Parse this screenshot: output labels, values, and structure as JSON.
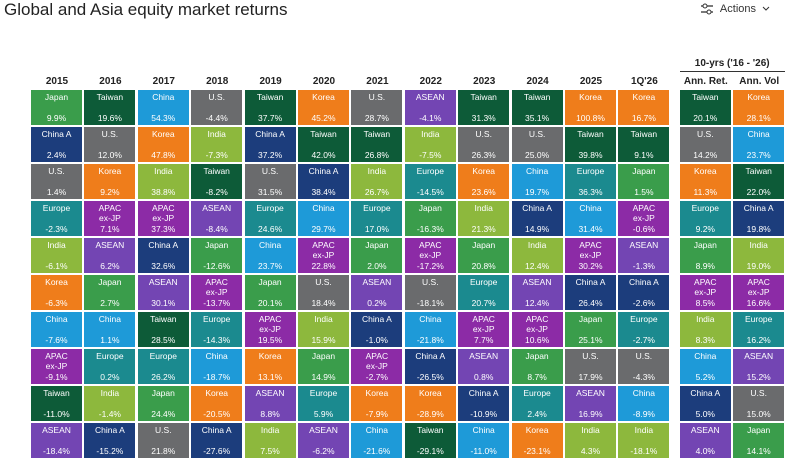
{
  "header": {
    "title": "Global and Asia equity market returns",
    "action": "Actions"
  },
  "table": {
    "group_header": "10-yrs ('16 - '26)",
    "colors": {
      "Japan": "#3a9d4b",
      "Taiwan": "#0d5b38",
      "China": "#1e9ad8",
      "U.S.": "#6a6b6d",
      "Korea": "#ef7d1b",
      "China A": "#1c3d7c",
      "India": "#8db83d",
      "ASEAN": "#7345b3",
      "Europe": "#1b8a8f",
      "APAC ex-JP": "#8c2ba6"
    },
    "columns": [
      {
        "header": "2015",
        "cells": [
          [
            "Japan",
            "9.9%"
          ],
          [
            "China A",
            "2.4%"
          ],
          [
            "U.S.",
            "1.4%"
          ],
          [
            "Europe",
            "-2.3%"
          ],
          [
            "India",
            "-6.1%"
          ],
          [
            "Korea",
            "-6.3%"
          ],
          [
            "China",
            "-7.6%"
          ],
          [
            "APAC ex-JP",
            "-9.1%"
          ],
          [
            "Taiwan",
            "-11.0%"
          ],
          [
            "ASEAN",
            "-18.4%"
          ]
        ]
      },
      {
        "header": "2016",
        "cells": [
          [
            "Taiwan",
            "19.6%"
          ],
          [
            "U.S.",
            "12.0%"
          ],
          [
            "Korea",
            "9.2%"
          ],
          [
            "APAC ex-JP",
            "7.1%"
          ],
          [
            "ASEAN",
            "6.2%"
          ],
          [
            "Japan",
            "2.7%"
          ],
          [
            "China",
            "1.1%"
          ],
          [
            "Europe",
            "0.2%"
          ],
          [
            "India",
            "-1.4%"
          ],
          [
            "China A",
            "-15.2%"
          ]
        ]
      },
      {
        "header": "2017",
        "cells": [
          [
            "China",
            "54.3%"
          ],
          [
            "Korea",
            "47.8%"
          ],
          [
            "India",
            "38.8%"
          ],
          [
            "APAC ex-JP",
            "37.3%"
          ],
          [
            "China A",
            "32.6%"
          ],
          [
            "ASEAN",
            "30.1%"
          ],
          [
            "Taiwan",
            "28.5%"
          ],
          [
            "Europe",
            "26.2%"
          ],
          [
            "Japan",
            "24.4%"
          ],
          [
            "U.S.",
            "21.8%"
          ]
        ]
      },
      {
        "header": "2018",
        "cells": [
          [
            "U.S.",
            "-4.4%"
          ],
          [
            "India",
            "-7.3%"
          ],
          [
            "Taiwan",
            "-8.2%"
          ],
          [
            "ASEAN",
            "-8.4%"
          ],
          [
            "Japan",
            "-12.6%"
          ],
          [
            "APAC ex-JP",
            "-13.7%"
          ],
          [
            "Europe",
            "-14.3%"
          ],
          [
            "China",
            "-18.7%"
          ],
          [
            "Korea",
            "-20.5%"
          ],
          [
            "China A",
            "-27.6%"
          ]
        ]
      },
      {
        "header": "2019",
        "cells": [
          [
            "Taiwan",
            "37.7%"
          ],
          [
            "China A",
            "37.2%"
          ],
          [
            "U.S.",
            "31.5%"
          ],
          [
            "Europe",
            "24.6%"
          ],
          [
            "China",
            "23.7%"
          ],
          [
            "Japan",
            "20.1%"
          ],
          [
            "APAC ex-JP",
            "19.5%"
          ],
          [
            "Korea",
            "13.1%"
          ],
          [
            "ASEAN",
            "8.8%"
          ],
          [
            "India",
            "7.5%"
          ]
        ]
      },
      {
        "header": "2020",
        "cells": [
          [
            "Korea",
            "45.2%"
          ],
          [
            "Taiwan",
            "42.0%"
          ],
          [
            "China A",
            "38.4%"
          ],
          [
            "China",
            "29.7%"
          ],
          [
            "APAC ex-JP",
            "22.8%"
          ],
          [
            "U.S.",
            "18.4%"
          ],
          [
            "India",
            "15.9%"
          ],
          [
            "Japan",
            "14.9%"
          ],
          [
            "Europe",
            "5.9%"
          ],
          [
            "ASEAN",
            "-6.2%"
          ]
        ]
      },
      {
        "header": "2021",
        "cells": [
          [
            "U.S.",
            "28.7%"
          ],
          [
            "Taiwan",
            "26.8%"
          ],
          [
            "India",
            "26.7%"
          ],
          [
            "Europe",
            "17.0%"
          ],
          [
            "Japan",
            "2.0%"
          ],
          [
            "ASEAN",
            "0.2%"
          ],
          [
            "China A",
            "-1.0%"
          ],
          [
            "APAC ex-JP",
            "-2.7%"
          ],
          [
            "Korea",
            "-7.9%"
          ],
          [
            "China",
            "-21.6%"
          ]
        ]
      },
      {
        "header": "2022",
        "cells": [
          [
            "ASEAN",
            "-4.1%"
          ],
          [
            "India",
            "-7.5%"
          ],
          [
            "Europe",
            "-14.5%"
          ],
          [
            "Japan",
            "-16.3%"
          ],
          [
            "APAC ex-JP",
            "-17.2%"
          ],
          [
            "U.S.",
            "-18.1%"
          ],
          [
            "China",
            "-21.8%"
          ],
          [
            "China A",
            "-26.5%"
          ],
          [
            "Korea",
            "-28.9%"
          ],
          [
            "Taiwan",
            "-29.1%"
          ]
        ]
      },
      {
        "header": "2023",
        "cells": [
          [
            "Taiwan",
            "31.3%"
          ],
          [
            "U.S.",
            "26.3%"
          ],
          [
            "Korea",
            "23.6%"
          ],
          [
            "India",
            "21.3%"
          ],
          [
            "Japan",
            "20.8%"
          ],
          [
            "Europe",
            "20.7%"
          ],
          [
            "APAC ex-JP",
            "7.7%"
          ],
          [
            "ASEAN",
            "0.8%"
          ],
          [
            "China A",
            "-10.9%"
          ],
          [
            "China",
            "-11.0%"
          ]
        ]
      },
      {
        "header": "2024",
        "cells": [
          [
            "Taiwan",
            "35.1%"
          ],
          [
            "U.S.",
            "25.0%"
          ],
          [
            "China",
            "19.7%"
          ],
          [
            "China A",
            "14.9%"
          ],
          [
            "India",
            "12.4%"
          ],
          [
            "ASEAN",
            "12.4%"
          ],
          [
            "APAC ex-JP",
            "10.6%"
          ],
          [
            "Japan",
            "8.7%"
          ],
          [
            "Europe",
            "2.4%"
          ],
          [
            "Korea",
            "-23.1%"
          ]
        ]
      },
      {
        "header": "2025",
        "cells": [
          [
            "Korea",
            "100.8%"
          ],
          [
            "Taiwan",
            "39.8%"
          ],
          [
            "Europe",
            "36.3%"
          ],
          [
            "China",
            "31.4%"
          ],
          [
            "APAC ex-JP",
            "30.2%"
          ],
          [
            "China A",
            "26.4%"
          ],
          [
            "Japan",
            "25.1%"
          ],
          [
            "U.S.",
            "17.9%"
          ],
          [
            "ASEAN",
            "16.9%"
          ],
          [
            "India",
            "4.3%"
          ]
        ]
      },
      {
        "header": "1Q'26",
        "cells": [
          [
            "Korea",
            "16.7%"
          ],
          [
            "Taiwan",
            "9.1%"
          ],
          [
            "Japan",
            "1.5%"
          ],
          [
            "APAC ex-JP",
            "-0.6%"
          ],
          [
            "ASEAN",
            "-1.3%"
          ],
          [
            "China A",
            "-2.6%"
          ],
          [
            "Europe",
            "-2.7%"
          ],
          [
            "U.S.",
            "-4.3%"
          ],
          [
            "China",
            "-8.9%"
          ],
          [
            "India",
            "-18.1%"
          ]
        ]
      },
      {
        "header": "Ann. Ret.",
        "cells": [
          [
            "Taiwan",
            "20.1%"
          ],
          [
            "U.S.",
            "14.2%"
          ],
          [
            "Korea",
            "11.3%"
          ],
          [
            "Europe",
            "9.2%"
          ],
          [
            "Japan",
            "8.9%"
          ],
          [
            "APAC ex-JP",
            "8.5%"
          ],
          [
            "India",
            "8.3%"
          ],
          [
            "China",
            "5.2%"
          ],
          [
            "China A",
            "5.0%"
          ],
          [
            "ASEAN",
            "4.0%"
          ]
        ]
      },
      {
        "header": "Ann. Vol",
        "cells": [
          [
            "Korea",
            "28.1%"
          ],
          [
            "China",
            "23.7%"
          ],
          [
            "Taiwan",
            "22.0%"
          ],
          [
            "China A",
            "19.8%"
          ],
          [
            "India",
            "19.0%"
          ],
          [
            "APAC ex-JP",
            "16.6%"
          ],
          [
            "Europe",
            "16.2%"
          ],
          [
            "ASEAN",
            "15.2%"
          ],
          [
            "U.S.",
            "15.0%"
          ],
          [
            "Japan",
            "14.1%"
          ]
        ]
      }
    ]
  }
}
